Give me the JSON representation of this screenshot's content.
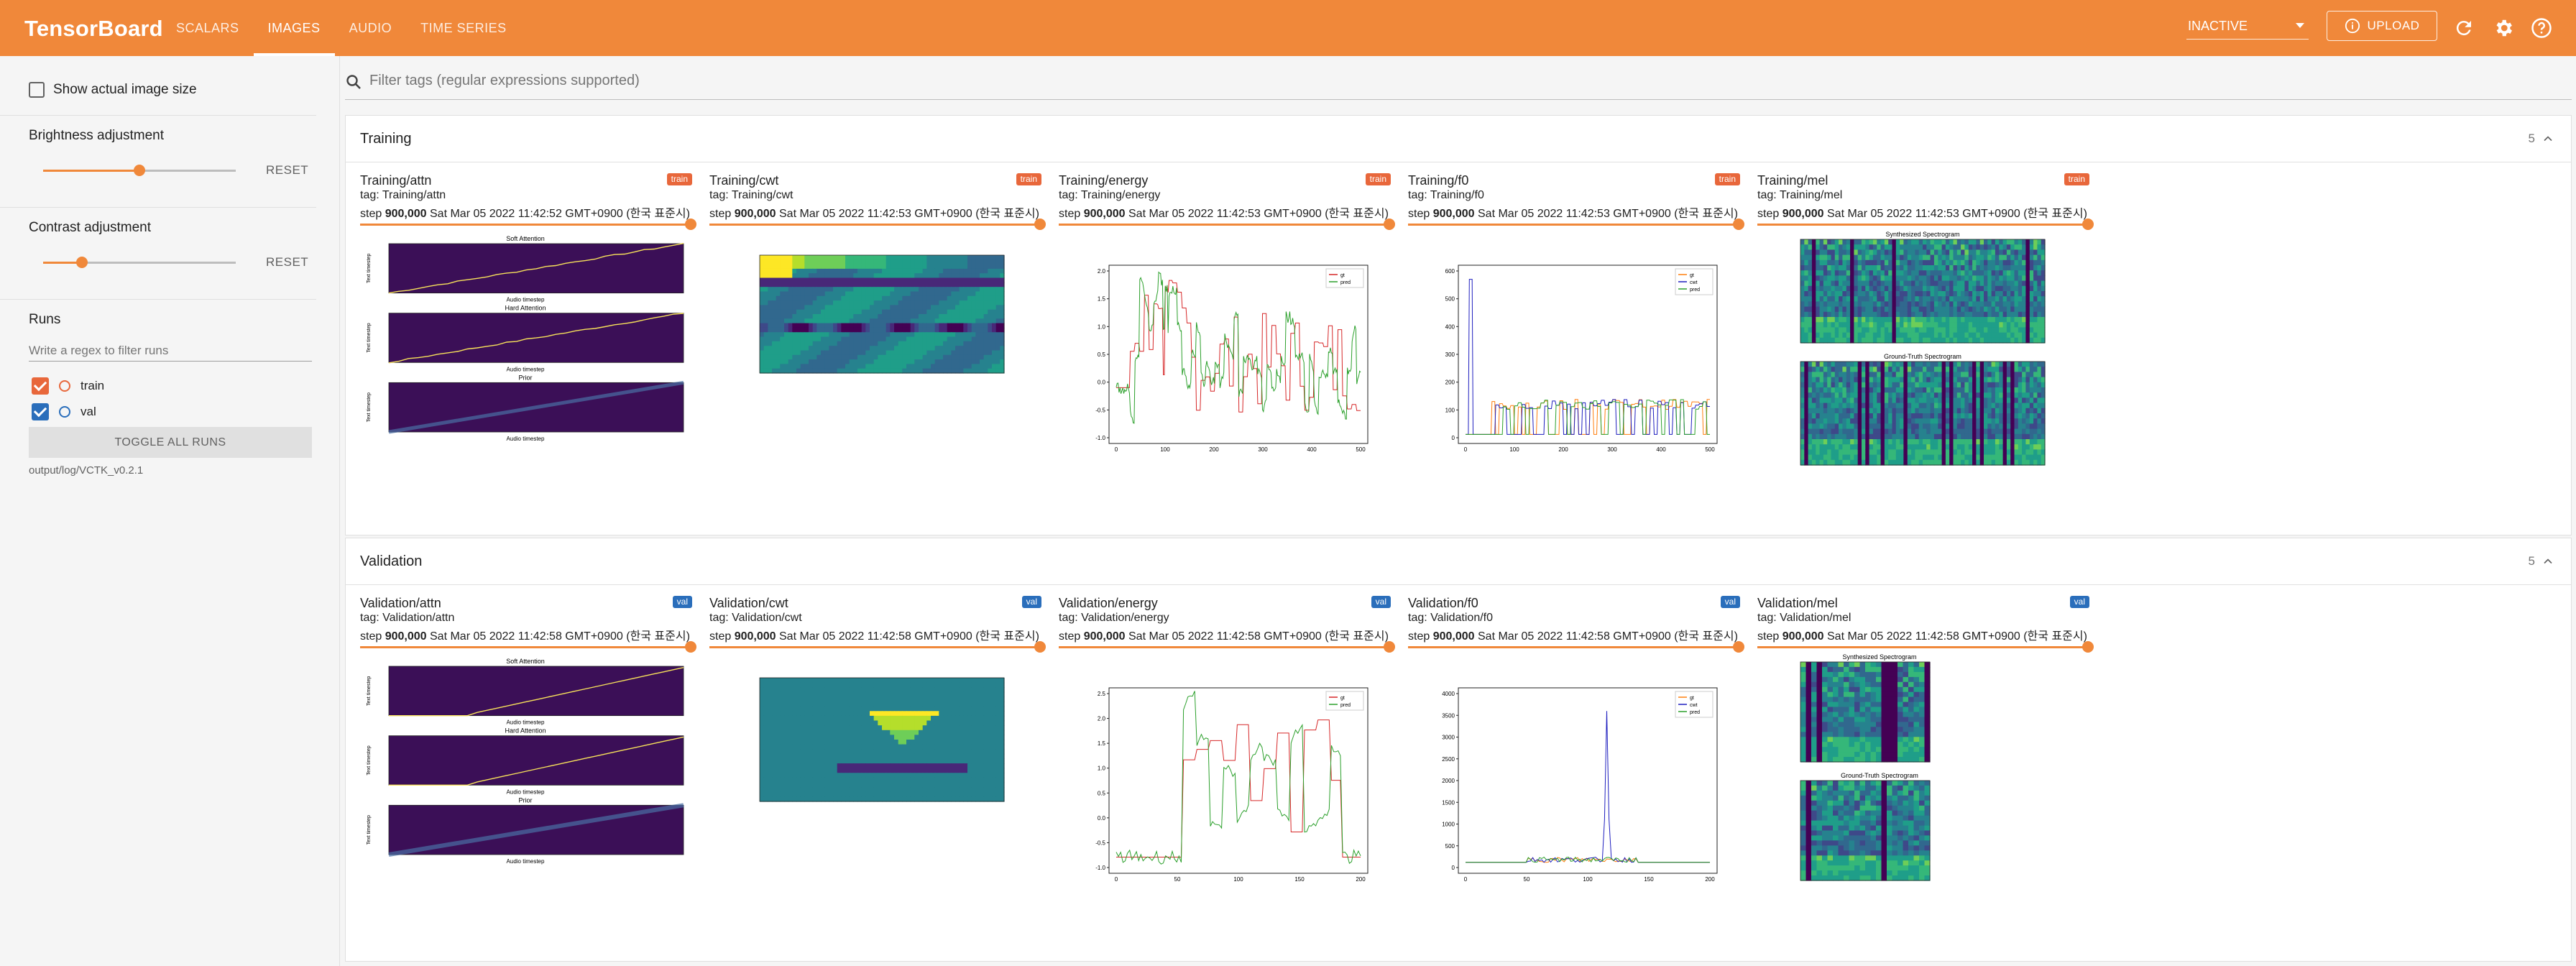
{
  "header": {
    "brand": "TensorBoard",
    "tabs": [
      {
        "label": "SCALARS"
      },
      {
        "label": "IMAGES"
      },
      {
        "label": "AUDIO"
      },
      {
        "label": "TIME SERIES"
      }
    ],
    "status_select": "INACTIVE",
    "upload_label": "UPLOAD",
    "accent_color": "#f0883a"
  },
  "sidebar": {
    "show_actual_size": "Show actual image size",
    "brightness": {
      "label": "Brightness adjustment",
      "reset": "RESET",
      "level": 0.5
    },
    "contrast": {
      "label": "Contrast adjustment",
      "reset": "RESET",
      "level": 0.2
    },
    "runs": {
      "title": "Runs",
      "filter_placeholder": "Write a regex to filter runs",
      "items": [
        {
          "name": "train",
          "color": "#e8673b",
          "checked": true
        },
        {
          "name": "val",
          "color": "#2a6ebb",
          "checked": true
        }
      ],
      "toggle_all": "TOGGLE ALL RUNS",
      "log_dir": "output/log/VCTK_v0.2.1"
    }
  },
  "filter": {
    "placeholder": "Filter tags (regular expressions supported)"
  },
  "groups": [
    {
      "title": "Training",
      "count": "5",
      "cards": [
        {
          "title": "Training/attn",
          "tag": "tag: Training/attn",
          "step_label": "step",
          "step": "900,000",
          "time": "Sat Mar 05 2022 11:42:52 GMT+0900 (한국 표준시)",
          "run": "train"
        },
        {
          "title": "Training/cwt",
          "tag": "tag: Training/cwt",
          "step_label": "step",
          "step": "900,000",
          "time": "Sat Mar 05 2022 11:42:53 GMT+0900 (한국 표준시)",
          "run": "train"
        },
        {
          "title": "Training/energy",
          "tag": "tag: Training/energy",
          "step_label": "step",
          "step": "900,000",
          "time": "Sat Mar 05 2022 11:42:53 GMT+0900 (한국 표준시)",
          "run": "train"
        },
        {
          "title": "Training/f0",
          "tag": "tag: Training/f0",
          "step_label": "step",
          "step": "900,000",
          "time": "Sat Mar 05 2022 11:42:53 GMT+0900 (한국 표준시)",
          "run": "train"
        },
        {
          "title": "Training/mel",
          "tag": "tag: Training/mel",
          "step_label": "step",
          "step": "900,000",
          "time": "Sat Mar 05 2022 11:42:53 GMT+0900 (한국 표준시)",
          "run": "train"
        }
      ]
    },
    {
      "title": "Validation",
      "count": "5",
      "cards": [
        {
          "title": "Validation/attn",
          "tag": "tag: Validation/attn",
          "step_label": "step",
          "step": "900,000",
          "time": "Sat Mar 05 2022 11:42:58 GMT+0900 (한국 표준시)",
          "run": "val"
        },
        {
          "title": "Validation/cwt",
          "tag": "tag: Validation/cwt",
          "step_label": "step",
          "step": "900,000",
          "time": "Sat Mar 05 2022 11:42:58 GMT+0900 (한국 표준시)",
          "run": "val"
        },
        {
          "title": "Validation/energy",
          "tag": "tag: Validation/energy",
          "step_label": "step",
          "step": "900,000",
          "time": "Sat Mar 05 2022 11:42:58 GMT+0900 (한국 표준시)",
          "run": "val"
        },
        {
          "title": "Validation/f0",
          "tag": "tag: Validation/f0",
          "step_label": "step",
          "step": "900,000",
          "time": "Sat Mar 05 2022 11:42:58 GMT+0900 (한국 표준시)",
          "run": "val"
        },
        {
          "title": "Validation/mel",
          "tag": "tag: Validation/mel",
          "step_label": "step",
          "step": "900,000",
          "time": "Sat Mar 05 2022 11:42:58 GMT+0900 (한국 표준시)",
          "run": "val"
        }
      ]
    }
  ],
  "plots": {
    "attn": {
      "subtitles": [
        "Soft Attention",
        "Hard Attention",
        "Prior"
      ],
      "xlabel": "Audio timestep",
      "ylabel": "Text timestep"
    },
    "energy": {
      "legend": [
        "gt",
        "pred"
      ],
      "train_yticks": [
        "2.0",
        "1.5",
        "1.0",
        "0.5",
        "0.0",
        "-0.5",
        "-1.0"
      ],
      "train_xticks": [
        "0",
        "100",
        "200",
        "300",
        "400",
        "500"
      ],
      "val_yticks": [
        "2.5",
        "2.0",
        "1.5",
        "1.0",
        "0.5",
        "0.0",
        "-0.5",
        "-1.0"
      ],
      "val_xticks": [
        "0",
        "50",
        "100",
        "150",
        "200"
      ]
    },
    "f0": {
      "legend": [
        "gt",
        "cwt",
        "pred"
      ],
      "train_yticks": [
        "600",
        "500",
        "400",
        "300",
        "200",
        "100",
        "0"
      ],
      "train_xticks": [
        "0",
        "100",
        "200",
        "300",
        "400",
        "500"
      ],
      "val_yticks": [
        "4000",
        "3500",
        "3000",
        "2500",
        "2000",
        "1500",
        "1000",
        "500",
        "0"
      ],
      "val_xticks": [
        "0",
        "50",
        "100",
        "150",
        "200"
      ]
    },
    "mel": {
      "subtitles": [
        "Synthesized Spectrogram",
        "Ground-Truth Spectrogram"
      ]
    }
  }
}
